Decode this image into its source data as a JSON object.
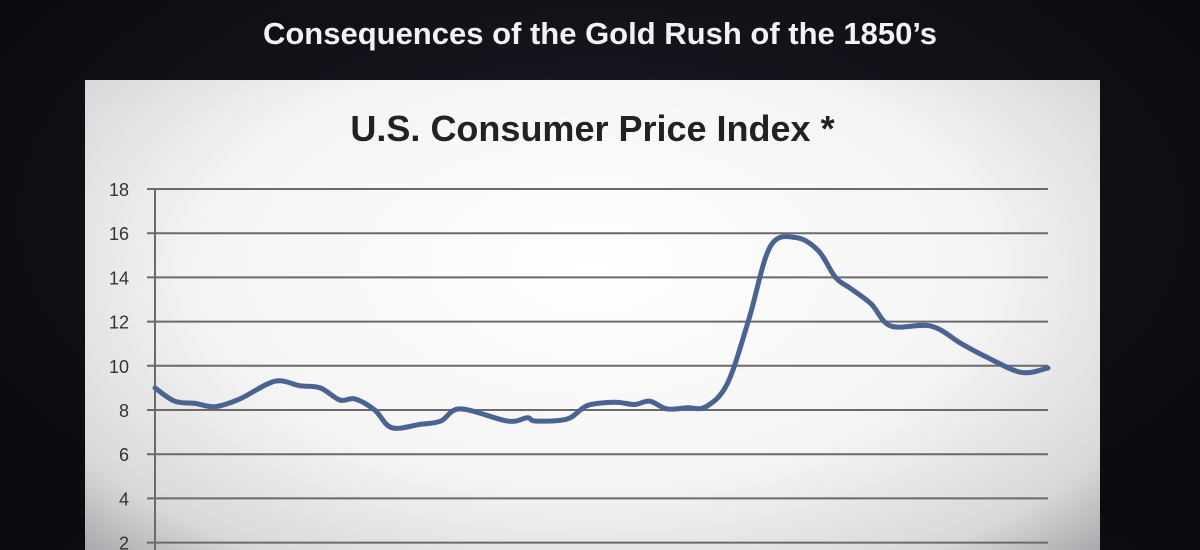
{
  "slide_title": "Consequences of the Gold Rush of the 1850’s",
  "chart_data": {
    "type": "line",
    "title": "U.S. Consumer Price Index *",
    "xlabel": "",
    "ylabel": "",
    "ylim": [
      2,
      18
    ],
    "yticks": [
      "18",
      "16",
      "14",
      "12",
      "10",
      "8",
      "6",
      "4",
      "2"
    ],
    "grid": true,
    "line_color": "#4a6391",
    "series": [
      {
        "name": "CPI",
        "x": [
          0,
          2.2,
          4.5,
          6.7,
          9.5,
          13.4,
          16.2,
          18.5,
          20.7,
          22.4,
          24.6,
          26.5,
          29.7,
          32,
          34.2,
          39.5,
          41.7,
          42.6,
          46.2,
          48.4,
          51.5,
          53.7,
          55.4,
          57.3,
          59.6,
          61.7,
          64.1,
          66.5,
          68.9,
          71.8,
          74.3,
          76.2,
          77.9,
          80.2,
          82.4,
          86.9,
          90.3,
          93.1,
          97,
          100
        ],
        "y": [
          9.0,
          8.4,
          8.3,
          8.15,
          8.5,
          9.3,
          9.1,
          9.0,
          8.45,
          8.5,
          8.0,
          7.2,
          7.35,
          7.5,
          8.05,
          7.5,
          7.65,
          7.5,
          7.6,
          8.2,
          8.35,
          8.25,
          8.4,
          8.05,
          8.1,
          8.15,
          9.2,
          12.1,
          15.4,
          15.8,
          15.2,
          14.0,
          13.5,
          12.8,
          11.8,
          11.8,
          11.0,
          10.4,
          9.7,
          9.9
        ]
      }
    ]
  }
}
